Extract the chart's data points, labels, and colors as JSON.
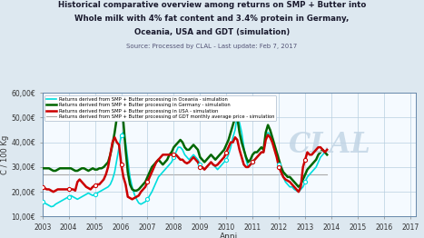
{
  "title_line1": "Historical comparative overview among returns on SMP + Butter into",
  "title_line2": "Whole milk with 4% fat content and 3.4% protein in Germany,",
  "title_line3": "Oceania, USA and GDT (simulation)",
  "subtitle": "Source: Processed by CLAL - Last update: Feb 7, 2017",
  "xlabel": "Anni",
  "ylabel": "C / 100 Kg",
  "ylim": [
    10000,
    60000
  ],
  "yticks": [
    10000,
    20000,
    30000,
    40000,
    50000,
    60000
  ],
  "ytick_labels": [
    "10,00€",
    "20,00€",
    "30,00€",
    "40,00€",
    "50,00€",
    "60,00€"
  ],
  "xlim": [
    2003,
    2017.2
  ],
  "xticks": [
    2003,
    2004,
    2005,
    2006,
    2007,
    2008,
    2009,
    2010,
    2011,
    2012,
    2013,
    2014,
    2015,
    2016,
    2017
  ],
  "bg_color": "#dde8f0",
  "plot_bg_color": "#f5faff",
  "grid_color": "#b8cfe0",
  "title_color": "#1a1a2e",
  "subtitle_color": "#555577",
  "legend_entries": [
    {
      "label": "Returns derived from SMP + Butter processing in Oceania - simulation",
      "color": "#00dddd",
      "lw": 1.2
    },
    {
      "label": "Returns derived from SMP + Butter processing in Germany - simulation",
      "color": "#006600",
      "lw": 1.8
    },
    {
      "label": "Returns derived from SMP + Butter processing in USA - simulation",
      "color": "#cc0000",
      "lw": 1.8
    },
    {
      "label": "Returns derived from SMP + Butter processing of GDT monthly average price - simulation",
      "color": "#aaaaaa",
      "lw": 0.8
    }
  ],
  "clal_watermark": "CLAL",
  "oceania": [
    16000,
    15500,
    15000,
    14500,
    14000,
    14200,
    15000,
    15500,
    16000,
    16500,
    17000,
    17500,
    18000,
    18500,
    18000,
    17500,
    17000,
    17500,
    18000,
    18500,
    19000,
    19500,
    19000,
    18500,
    19000,
    19500,
    20000,
    20500,
    21000,
    21500,
    22000,
    23000,
    25000,
    28000,
    33000,
    38000,
    43000,
    44000,
    40000,
    33000,
    26000,
    22000,
    19000,
    17000,
    15500,
    15000,
    15500,
    16000,
    17000,
    18500,
    20000,
    22000,
    24000,
    26000,
    27000,
    28000,
    29000,
    30000,
    31000,
    32000,
    34000,
    36000,
    38000,
    38000,
    37000,
    35000,
    34000,
    33000,
    34000,
    35000,
    34000,
    33000,
    31000,
    30000,
    29000,
    30000,
    31000,
    32000,
    31000,
    30000,
    29000,
    30000,
    31000,
    32000,
    33000,
    35000,
    38000,
    42000,
    45000,
    51000,
    48000,
    44000,
    38000,
    33000,
    30000,
    31000,
    32000,
    33000,
    34000,
    35000,
    36000,
    36000,
    42000,
    44000,
    43000,
    41000,
    38000,
    35000,
    31000,
    29000,
    26000,
    24000,
    23000,
    22000,
    22000,
    21000,
    20500,
    20000,
    21000,
    22000,
    24000,
    26000,
    27000,
    28000,
    29000,
    30000,
    32000,
    34000,
    35000,
    36000,
    35000
  ],
  "germany": [
    29500,
    29500,
    29500,
    29500,
    29000,
    28500,
    28500,
    29000,
    29500,
    29500,
    29500,
    29500,
    29500,
    29500,
    29000,
    28500,
    28500,
    29000,
    29500,
    29500,
    29000,
    28500,
    29000,
    29500,
    29000,
    29000,
    29500,
    29500,
    30000,
    31000,
    32000,
    35000,
    39000,
    44000,
    50000,
    55000,
    55000,
    48000,
    37000,
    28000,
    23000,
    21000,
    20500,
    20500,
    21000,
    22000,
    23000,
    24000,
    26000,
    28000,
    30000,
    31000,
    32000,
    33000,
    32000,
    31000,
    32000,
    33000,
    35000,
    36000,
    38000,
    39000,
    40000,
    41000,
    40000,
    38000,
    37000,
    37000,
    38000,
    39000,
    38000,
    37000,
    34000,
    33000,
    32000,
    33000,
    34000,
    35000,
    34000,
    33000,
    34000,
    35000,
    36000,
    37000,
    39000,
    41000,
    44000,
    47000,
    50000,
    50000,
    44000,
    40000,
    37000,
    34000,
    32000,
    33000,
    35000,
    36000,
    36000,
    37000,
    38000,
    37000,
    44000,
    47000,
    45000,
    42000,
    39000,
    36000,
    33000,
    30000,
    28000,
    27000,
    26000,
    26000,
    25000,
    24000,
    23000,
    22000,
    23000,
    25000,
    27000,
    29000,
    30000,
    31000,
    32000,
    33000,
    35000,
    36000,
    37000,
    36000,
    35000
  ],
  "usa": [
    22000,
    21500,
    21000,
    21000,
    20500,
    20000,
    20500,
    21000,
    21000,
    21000,
    21000,
    21000,
    21000,
    21000,
    21000,
    20500,
    24000,
    25000,
    24000,
    23000,
    22000,
    21500,
    21000,
    22000,
    22500,
    23000,
    23000,
    24000,
    25000,
    27000,
    30000,
    35000,
    40000,
    42000,
    40000,
    39000,
    31000,
    26000,
    23000,
    18000,
    17500,
    17000,
    17500,
    18000,
    18500,
    20000,
    21000,
    22000,
    24000,
    26000,
    28000,
    30000,
    32000,
    33000,
    34000,
    35000,
    35000,
    35000,
    35000,
    35000,
    35000,
    35000,
    34000,
    33000,
    33000,
    32000,
    31500,
    32000,
    33000,
    34000,
    33000,
    32000,
    30000,
    30000,
    29000,
    30000,
    31000,
    32000,
    31000,
    30500,
    31000,
    32000,
    33000,
    34000,
    36000,
    38000,
    40000,
    40000,
    42000,
    41000,
    37000,
    34000,
    31000,
    30000,
    30000,
    31000,
    32000,
    33000,
    34000,
    35000,
    36000,
    36000,
    41000,
    43000,
    42000,
    40000,
    37000,
    34000,
    30000,
    28000,
    26000,
    25000,
    24500,
    24000,
    23000,
    22000,
    21000,
    20000,
    22000,
    30000,
    33000,
    36000,
    35000,
    35000,
    36000,
    37000,
    38000,
    38000,
    37000,
    36000,
    37000
  ],
  "gdt": [
    27000,
    27000,
    27000,
    27000,
    27000,
    27000,
    27000,
    27000,
    27000,
    27000,
    27000,
    27000,
    27000,
    27000,
    27000,
    27000,
    27000,
    27000,
    27000,
    27000,
    27000,
    27000,
    27000,
    27000,
    27000,
    27000,
    27000,
    27000,
    27000,
    27000,
    27000,
    27000,
    27000,
    27000,
    27000,
    27000,
    27000,
    27000,
    27000,
    27000,
    27000,
    27000,
    27000,
    27000,
    27000,
    27000,
    27000,
    27000,
    27000,
    27000,
    27000,
    27000,
    27000,
    27000,
    27000,
    27000,
    27000,
    27000,
    27000,
    27000,
    27000,
    27000,
    27000,
    27000,
    27000,
    27000,
    27000,
    27000,
    27000,
    27000,
    27000,
    27000,
    27000,
    27000,
    27000,
    27000,
    27000,
    27000,
    27000,
    27000,
    27000,
    27000,
    27000,
    27000,
    27000,
    27000,
    27000,
    27000,
    27000,
    27000,
    27000,
    27000,
    27000,
    27000,
    27000,
    27000,
    27000,
    27000,
    27000,
    27000,
    27000,
    27000,
    27000,
    27000,
    27000,
    27000,
    27000,
    27000,
    27000,
    27000,
    27000,
    27000,
    27000,
    27000,
    27000,
    27000,
    27000,
    27000,
    27000,
    27000,
    27000,
    27000,
    27000,
    27000,
    27000,
    27000,
    27000,
    27000,
    27000,
    27000,
    27000
  ],
  "marker_years": [
    2003,
    2004,
    2005,
    2006,
    2007,
    2008,
    2009,
    2010,
    2011,
    2012,
    2013,
    2014,
    2015,
    2016
  ]
}
